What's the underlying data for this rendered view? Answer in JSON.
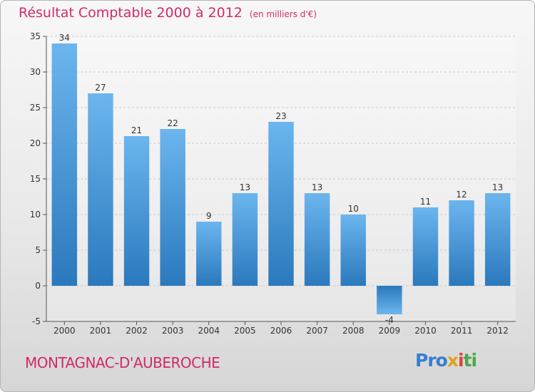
{
  "title": "Résultat Comptable 2000 à 2012",
  "subtitle": "(en milliers d'€)",
  "commune": "MONTAGNAC-D'AUBEROCHE",
  "logo": {
    "part1": "Pro",
    "part2": "x",
    "part3": "i",
    "part4": "ti"
  },
  "colors": {
    "accent": "#d12a68",
    "bar": "#4a9fe0",
    "bar_light": "#6cb5ee",
    "bar_dark": "#2a79bd"
  },
  "chart_data": {
    "type": "bar",
    "categories": [
      "2000",
      "2001",
      "2002",
      "2003",
      "2004",
      "2005",
      "2006",
      "2007",
      "2008",
      "2009",
      "2010",
      "2011",
      "2012"
    ],
    "values": [
      34,
      27,
      21,
      22,
      9,
      13,
      23,
      13,
      10,
      -4,
      11,
      12,
      13
    ],
    "data_labels": [
      "34",
      "27",
      "21",
      "22",
      "9",
      "13",
      "23",
      "13",
      "10",
      "-4",
      "11",
      "12",
      "13"
    ],
    "title": "Résultat Comptable 2000 à 2012",
    "ylabel": "(en milliers d'€)",
    "xlabel": "",
    "ylim": [
      -5,
      35
    ],
    "yticks": [
      -5,
      0,
      5,
      10,
      15,
      20,
      25,
      30,
      35
    ],
    "ytick_labels": [
      "-5",
      "0",
      "5",
      "10",
      "15",
      "20",
      "25",
      "30",
      "35"
    ],
    "grid": true
  }
}
